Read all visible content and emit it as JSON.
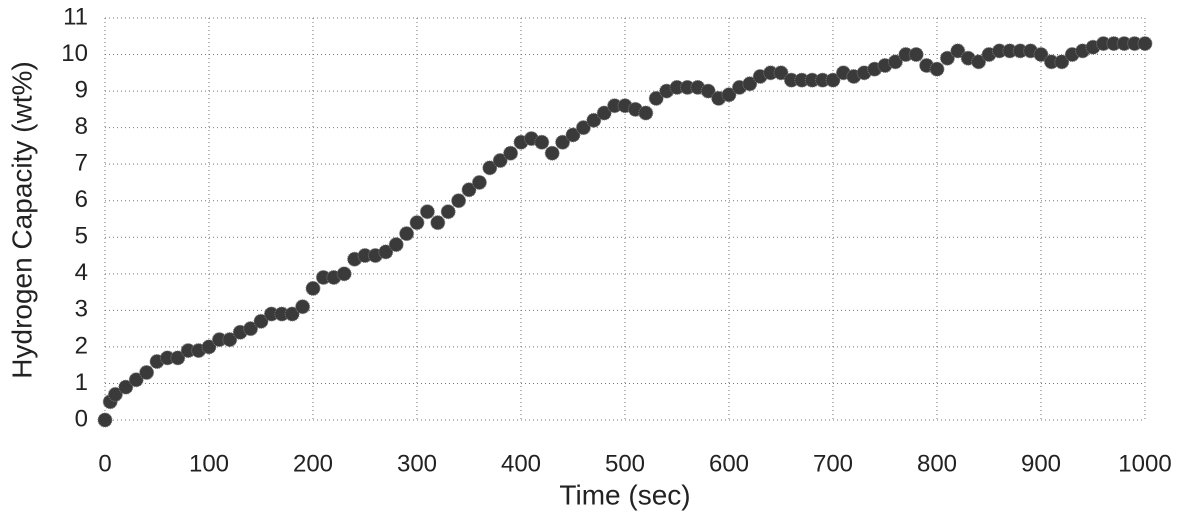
{
  "chart_data": {
    "type": "scatter",
    "x_label": "Time (sec)",
    "y_label": "Hydrogen Capacity (wt%)",
    "x": [
      0,
      5,
      10,
      20,
      30,
      40,
      50,
      60,
      70,
      80,
      90,
      100,
      110,
      120,
      130,
      140,
      150,
      160,
      170,
      180,
      190,
      200,
      210,
      220,
      230,
      240,
      250,
      260,
      270,
      280,
      290,
      300,
      310,
      320,
      330,
      340,
      350,
      360,
      370,
      380,
      390,
      400,
      410,
      420,
      430,
      440,
      450,
      460,
      470,
      480,
      490,
      500,
      510,
      520,
      530,
      540,
      550,
      560,
      570,
      580,
      590,
      600,
      610,
      620,
      630,
      640,
      650,
      660,
      670,
      680,
      690,
      700,
      710,
      720,
      730,
      740,
      750,
      760,
      770,
      780,
      790,
      800,
      810,
      820,
      830,
      840,
      850,
      860,
      870,
      880,
      890,
      900,
      910,
      920,
      930,
      940,
      950,
      960,
      970,
      980,
      990,
      1000
    ],
    "values": [
      0,
      0.5,
      0.7,
      0.9,
      1.1,
      1.3,
      1.6,
      1.7,
      1.7,
      1.9,
      1.9,
      2.0,
      2.2,
      2.2,
      2.4,
      2.5,
      2.7,
      2.9,
      2.9,
      2.9,
      3.1,
      3.6,
      3.9,
      3.9,
      4.0,
      4.4,
      4.5,
      4.5,
      4.6,
      4.8,
      5.1,
      5.4,
      5.7,
      5.4,
      5.7,
      6.0,
      6.3,
      6.5,
      6.9,
      7.1,
      7.3,
      7.6,
      7.7,
      7.6,
      7.3,
      7.6,
      7.8,
      8.0,
      8.2,
      8.4,
      8.6,
      8.6,
      8.5,
      8.4,
      8.8,
      9.0,
      9.1,
      9.1,
      9.1,
      9.0,
      8.8,
      8.9,
      9.1,
      9.2,
      9.4,
      9.5,
      9.5,
      9.3,
      9.3,
      9.3,
      9.3,
      9.3,
      9.5,
      9.4,
      9.5,
      9.6,
      9.7,
      9.8,
      10.0,
      10.0,
      9.7,
      9.6,
      9.9,
      10.1,
      9.9,
      9.8,
      10.0,
      10.1,
      10.1,
      10.1,
      10.1,
      10.0,
      9.8,
      9.8,
      10.0,
      10.1,
      10.2,
      10.3,
      10.3,
      10.3,
      10.3,
      10.3
    ],
    "color": "#3a3a3a",
    "xlim": [
      0,
      1000
    ],
    "xticks": [
      0,
      100,
      200,
      300,
      400,
      500,
      600,
      700,
      800,
      900,
      1000
    ],
    "ylim": [
      0,
      11
    ],
    "yticks": [
      0,
      1,
      2,
      3,
      4,
      5,
      6,
      7,
      8,
      9,
      10,
      11
    ],
    "grid": true
  }
}
